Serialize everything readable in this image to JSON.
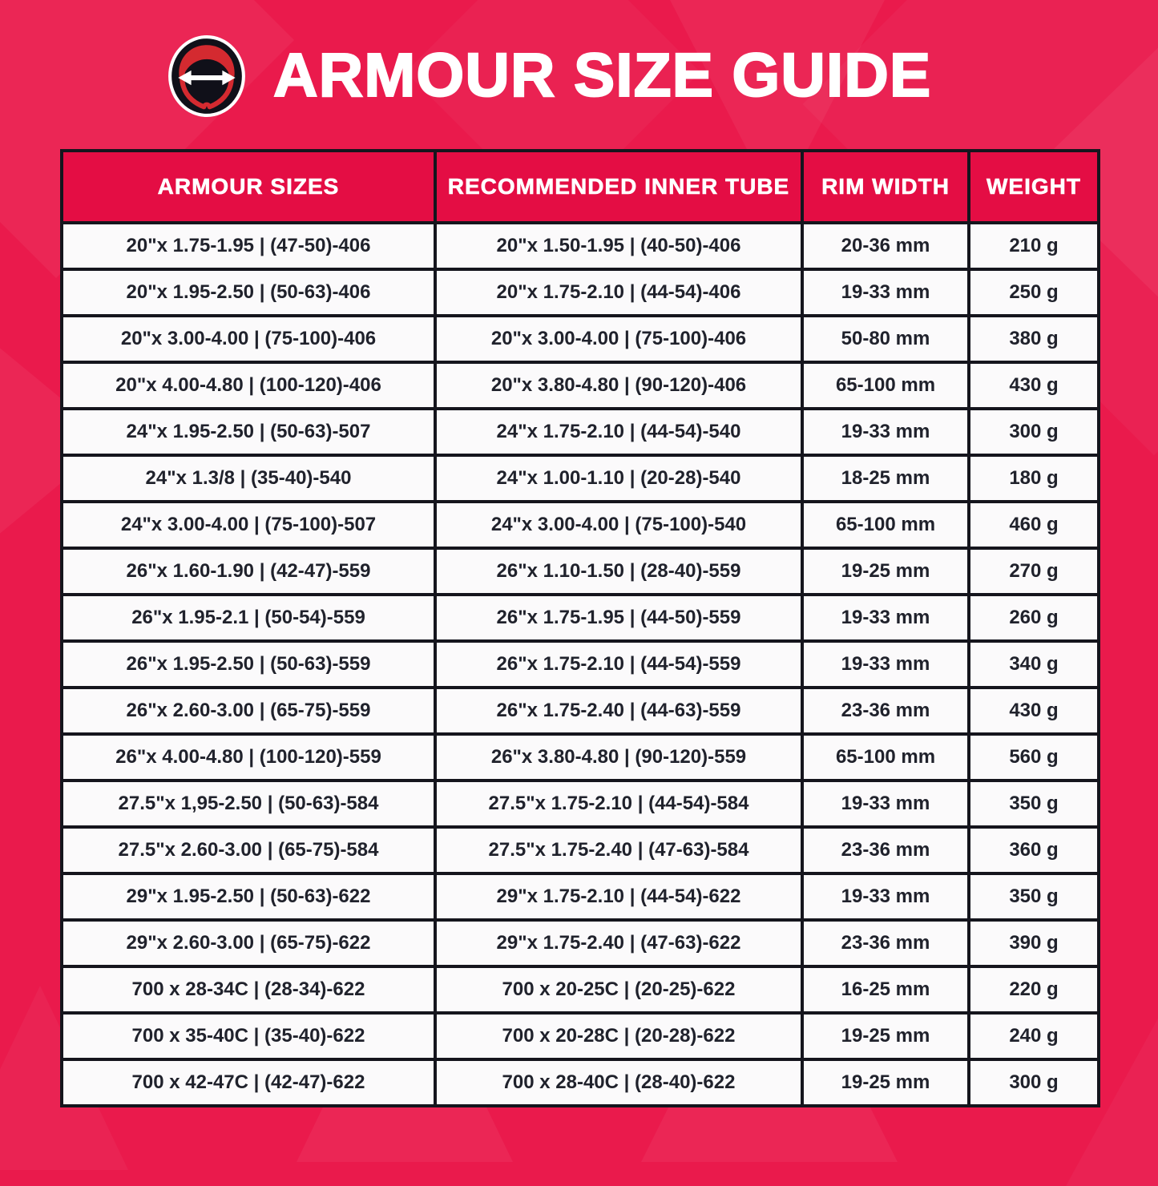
{
  "page": {
    "title": "ARMOUR SIZE GUIDE"
  },
  "logo": {
    "alt": "tire cross-section emblem with double-headed width arrow"
  },
  "table": {
    "headers": [
      "ARMOUR SIZES",
      "RECOMMENDED INNER TUBE",
      "RIM WIDTH",
      "WEIGHT"
    ],
    "rows": [
      [
        "20\"x 1.75-1.95 | (47-50)-406",
        "20\"x 1.50-1.95 | (40-50)-406",
        "20-36 mm",
        "210 g"
      ],
      [
        "20\"x 1.95-2.50 | (50-63)-406",
        "20\"x 1.75-2.10 | (44-54)-406",
        "19-33 mm",
        "250 g"
      ],
      [
        "20\"x 3.00-4.00 | (75-100)-406",
        "20\"x 3.00-4.00 | (75-100)-406",
        "50-80 mm",
        "380 g"
      ],
      [
        "20\"x 4.00-4.80 | (100-120)-406",
        "20\"x 3.80-4.80 | (90-120)-406",
        "65-100 mm",
        "430 g"
      ],
      [
        "24\"x 1.95-2.50 | (50-63)-507",
        "24\"x 1.75-2.10 | (44-54)-540",
        "19-33 mm",
        "300 g"
      ],
      [
        "24\"x 1.3/8 | (35-40)-540",
        "24\"x 1.00-1.10 | (20-28)-540",
        "18-25 mm",
        "180 g"
      ],
      [
        "24\"x 3.00-4.00 | (75-100)-507",
        "24\"x 3.00-4.00 | (75-100)-540",
        "65-100 mm",
        "460 g"
      ],
      [
        "26\"x 1.60-1.90 | (42-47)-559",
        "26\"x 1.10-1.50 | (28-40)-559",
        "19-25 mm",
        "270 g"
      ],
      [
        "26\"x 1.95-2.1 | (50-54)-559",
        "26\"x 1.75-1.95 | (44-50)-559",
        "19-33 mm",
        "260 g"
      ],
      [
        "26\"x 1.95-2.50 | (50-63)-559",
        "26\"x 1.75-2.10 | (44-54)-559",
        "19-33 mm",
        "340 g"
      ],
      [
        "26\"x 2.60-3.00 | (65-75)-559",
        "26\"x 1.75-2.40 | (44-63)-559",
        "23-36 mm",
        "430 g"
      ],
      [
        "26\"x 4.00-4.80 | (100-120)-559",
        "26\"x 3.80-4.80 | (90-120)-559",
        "65-100 mm",
        "560 g"
      ],
      [
        "27.5\"x 1,95-2.50 | (50-63)-584",
        "27.5\"x 1.75-2.10 | (44-54)-584",
        "19-33 mm",
        "350 g"
      ],
      [
        "27.5\"x 2.60-3.00 | (65-75)-584",
        "27.5\"x 1.75-2.40 | (47-63)-584",
        "23-36 mm",
        "360 g"
      ],
      [
        "29\"x 1.95-2.50 | (50-63)-622",
        "29\"x 1.75-2.10 | (44-54)-622",
        "19-33 mm",
        "350 g"
      ],
      [
        "29\"x 2.60-3.00 | (65-75)-622",
        "29\"x 1.75-2.40 | (47-63)-622",
        "23-36 mm",
        "390 g"
      ],
      [
        "700 x 28-34C | (28-34)-622",
        "700 x 20-25C | (20-25)-622",
        "16-25 mm",
        "220 g"
      ],
      [
        "700 x 35-40C | (35-40)-622",
        "700 x 20-28C | (20-28)-622",
        "19-25 mm",
        "240 g"
      ],
      [
        "700 x 42-47C | (42-47)-622",
        "700 x 28-40C | (28-40)-622",
        "19-25 mm",
        "300 g"
      ]
    ]
  },
  "colors": {
    "background": "#EA1A4C",
    "header_background": "#E40D44",
    "row_background": "#FBFAFB",
    "cell_text": "#20222C",
    "border": "#15151D",
    "title_text": "#FFFFFF",
    "logo_red": "#D42A30",
    "logo_black": "#101019"
  }
}
